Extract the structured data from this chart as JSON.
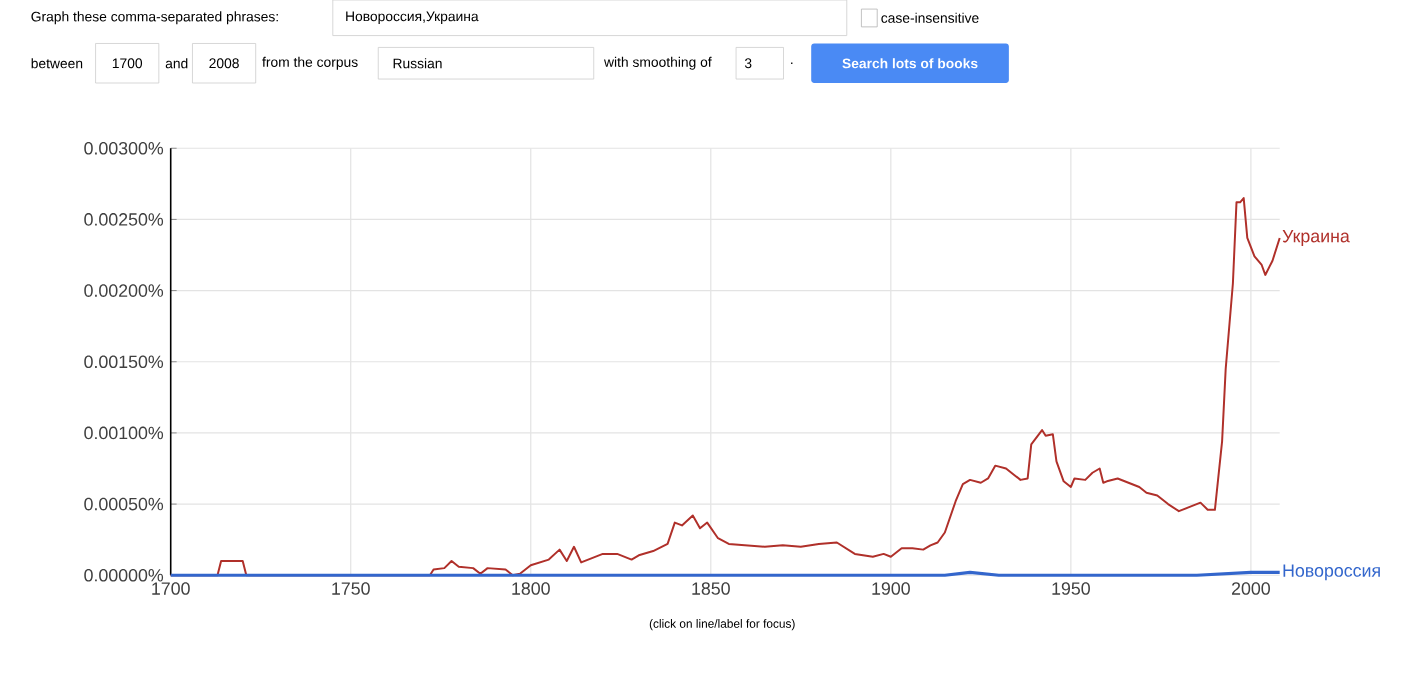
{
  "chart_data": {
    "type": "line",
    "xlim": [
      1700,
      2008
    ],
    "ylim": [
      0,
      0.003
    ],
    "xticks": [
      1700,
      1750,
      1800,
      1850,
      1900,
      1950,
      2000
    ],
    "yticks": [
      {
        "value": 0,
        "label": "0.00000%"
      },
      {
        "value": 0.0005,
        "label": "0.00050%"
      },
      {
        "value": 0.001,
        "label": "0.00100%"
      },
      {
        "value": 0.0015,
        "label": "0.00150%"
      },
      {
        "value": 0.002,
        "label": "0.00200%"
      },
      {
        "value": 0.0025,
        "label": "0.00250%"
      },
      {
        "value": 0.003,
        "label": "0.00300%"
      }
    ],
    "grid": true,
    "series": [
      {
        "name": "Украина",
        "color": "#b0302a",
        "x": [
          1700,
          1713,
          1714,
          1720,
          1721,
          1772,
          1773,
          1776,
          1778,
          1780,
          1784,
          1786,
          1788,
          1793,
          1795,
          1797,
          1800,
          1805,
          1808,
          1810,
          1812,
          1814,
          1820,
          1824,
          1828,
          1830,
          1834,
          1838,
          1840,
          1842,
          1845,
          1847,
          1849,
          1852,
          1855,
          1860,
          1865,
          1870,
          1875,
          1880,
          1885,
          1890,
          1895,
          1898,
          1900,
          1903,
          1906,
          1909,
          1911,
          1913,
          1915,
          1918,
          1920,
          1922,
          1925,
          1927,
          1929,
          1932,
          1934,
          1936,
          1938,
          1939,
          1942,
          1943,
          1945,
          1946,
          1948,
          1950,
          1951,
          1954,
          1956,
          1958,
          1959,
          1960,
          1963,
          1966,
          1969,
          1971,
          1974,
          1977,
          1980,
          1983,
          1986,
          1988,
          1990,
          1992,
          1993,
          1995,
          1996,
          1997,
          1998,
          1999,
          2001,
          2003,
          2004,
          2006,
          2008
        ],
        "values": [
          0,
          0,
          0.0001,
          0.0001,
          0,
          0,
          4e-05,
          5e-05,
          0.0001,
          6e-05,
          5e-05,
          1e-05,
          5e-05,
          4e-05,
          0,
          1e-05,
          7e-05,
          0.00011,
          0.00018,
          0.0001,
          0.0002,
          9e-05,
          0.00015,
          0.00015,
          0.00011,
          0.00014,
          0.00017,
          0.00022,
          0.00037,
          0.00035,
          0.00042,
          0.00033,
          0.00037,
          0.00026,
          0.00022,
          0.00021,
          0.0002,
          0.00021,
          0.0002,
          0.00022,
          0.00023,
          0.00015,
          0.00013,
          0.00015,
          0.00013,
          0.00019,
          0.00019,
          0.00018,
          0.00021,
          0.00023,
          0.0003,
          0.00052,
          0.00064,
          0.00067,
          0.00065,
          0.00068,
          0.00077,
          0.00075,
          0.00071,
          0.00067,
          0.00068,
          0.00092,
          0.00102,
          0.00098,
          0.00099,
          0.0008,
          0.00066,
          0.00062,
          0.00068,
          0.00067,
          0.00072,
          0.00075,
          0.00065,
          0.00066,
          0.00068,
          0.00065,
          0.00062,
          0.00058,
          0.00056,
          0.0005,
          0.00045,
          0.00048,
          0.00051,
          0.00046,
          0.00046,
          0.00094,
          0.00145,
          0.00205,
          0.00262,
          0.00262,
          0.00265,
          0.00237,
          0.00224,
          0.00218,
          0.00211,
          0.00221,
          0.00237
        ]
      },
      {
        "name": "Новороссия",
        "color": "#3366cc",
        "x": [
          1700,
          1915,
          1922,
          1930,
          1950,
          1985,
          2000,
          2008
        ],
        "values": [
          0,
          0,
          2e-05,
          0,
          0,
          0,
          2e-05,
          2e-05
        ]
      }
    ],
    "annotations": [
      "Graph these comma-separated phrases:",
      "Новороссия,Украина",
      "case-insensitive",
      "between",
      "1700",
      "and",
      "2008",
      "from the corpus",
      "Russian",
      "with smoothing of",
      "3",
      ".",
      "Search lots of books",
      "(click on line/label for focus)"
    ]
  }
}
